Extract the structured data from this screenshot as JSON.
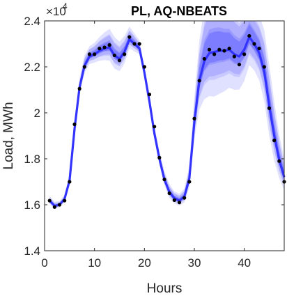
{
  "chart_data": {
    "type": "line",
    "title": "PL, AQ-NBEATS",
    "xlabel": "Hours",
    "ylabel": "Load, MWh",
    "y_exponent_label": "×10",
    "y_exponent_power": "4",
    "xlim": [
      0,
      48
    ],
    "ylim": [
      1.4,
      2.4
    ],
    "y_scale_factor": 10000,
    "xticks": [
      0,
      10,
      20,
      30,
      40
    ],
    "xtick_labels": [
      "0",
      "10",
      "20",
      "30",
      "40"
    ],
    "yticks": [
      1.4,
      1.6,
      1.8,
      2.0,
      2.2,
      2.4
    ],
    "ytick_labels": [
      "1.4",
      "1.6",
      "1.8",
      "2",
      "2.2",
      "2.4"
    ],
    "grid": false,
    "colors": {
      "band": "#4040ff",
      "median": "#3333ff",
      "points": "#000000"
    },
    "x": [
      1,
      2,
      3,
      4,
      5,
      6,
      7,
      8,
      9,
      10,
      11,
      12,
      13,
      14,
      15,
      16,
      17,
      18,
      19,
      20,
      21,
      22,
      23,
      24,
      25,
      26,
      27,
      28,
      29,
      30,
      31,
      32,
      33,
      34,
      35,
      36,
      37,
      38,
      39,
      40,
      41,
      42,
      43,
      44,
      45,
      46,
      47,
      48
    ],
    "series": [
      {
        "values": [
          1.618,
          1.59,
          1.6,
          1.618,
          1.7,
          1.95,
          2.105,
          2.2,
          2.255,
          2.255,
          2.28,
          2.285,
          2.295,
          2.25,
          2.228,
          2.255,
          2.33,
          2.3,
          2.3,
          2.2,
          2.08,
          1.94,
          1.805,
          1.71,
          1.65,
          1.62,
          1.61,
          1.63,
          1.7,
          1.975,
          2.14,
          2.235,
          2.275,
          2.255,
          2.275,
          2.27,
          2.28,
          2.245,
          2.21,
          2.255,
          2.335,
          2.3,
          2.28,
          2.2,
          2.02,
          1.88,
          1.79,
          1.7
        ],
        "style": "points"
      },
      {
        "values": [
          1.618,
          1.595,
          1.6,
          1.625,
          1.705,
          1.93,
          2.11,
          2.205,
          2.245,
          2.255,
          2.27,
          2.28,
          2.285,
          2.25,
          2.235,
          2.265,
          2.32,
          2.3,
          2.28,
          2.175,
          2.05,
          1.91,
          1.8,
          1.71,
          1.655,
          1.628,
          1.618,
          1.635,
          1.715,
          1.96,
          2.14,
          2.225,
          2.26,
          2.265,
          2.27,
          2.27,
          2.275,
          2.255,
          2.245,
          2.275,
          2.33,
          2.3,
          2.26,
          2.18,
          2.03,
          1.9,
          1.795,
          1.72
        ],
        "style": "median"
      }
    ],
    "band_half_widths": {
      "outer": [
        0.02,
        0.018,
        0.016,
        0.018,
        0.025,
        0.035,
        0.04,
        0.045,
        0.045,
        0.05,
        0.06,
        0.07,
        0.08,
        0.08,
        0.075,
        0.07,
        0.055,
        0.045,
        0.035,
        0.025,
        0.025,
        0.03,
        0.035,
        0.035,
        0.035,
        0.03,
        0.03,
        0.035,
        0.055,
        0.105,
        0.175,
        0.23,
        0.26,
        0.27,
        0.26,
        0.245,
        0.23,
        0.215,
        0.2,
        0.19,
        0.17,
        0.16,
        0.165,
        0.18,
        0.18,
        0.15,
        0.11,
        0.08
      ],
      "middle": [
        0.012,
        0.011,
        0.01,
        0.011,
        0.015,
        0.022,
        0.026,
        0.03,
        0.03,
        0.033,
        0.04,
        0.045,
        0.052,
        0.052,
        0.048,
        0.045,
        0.036,
        0.03,
        0.023,
        0.017,
        0.017,
        0.02,
        0.023,
        0.023,
        0.023,
        0.02,
        0.02,
        0.023,
        0.036,
        0.068,
        0.112,
        0.15,
        0.17,
        0.175,
        0.17,
        0.16,
        0.15,
        0.14,
        0.13,
        0.124,
        0.11,
        0.104,
        0.108,
        0.118,
        0.118,
        0.098,
        0.072,
        0.052
      ],
      "inner": [
        0.006,
        0.005,
        0.005,
        0.005,
        0.007,
        0.011,
        0.013,
        0.015,
        0.015,
        0.016,
        0.02,
        0.022,
        0.026,
        0.026,
        0.024,
        0.022,
        0.018,
        0.015,
        0.011,
        0.008,
        0.008,
        0.01,
        0.011,
        0.011,
        0.011,
        0.01,
        0.01,
        0.011,
        0.018,
        0.034,
        0.056,
        0.075,
        0.085,
        0.088,
        0.085,
        0.08,
        0.075,
        0.07,
        0.065,
        0.062,
        0.055,
        0.052,
        0.054,
        0.059,
        0.059,
        0.049,
        0.036,
        0.026
      ]
    }
  }
}
